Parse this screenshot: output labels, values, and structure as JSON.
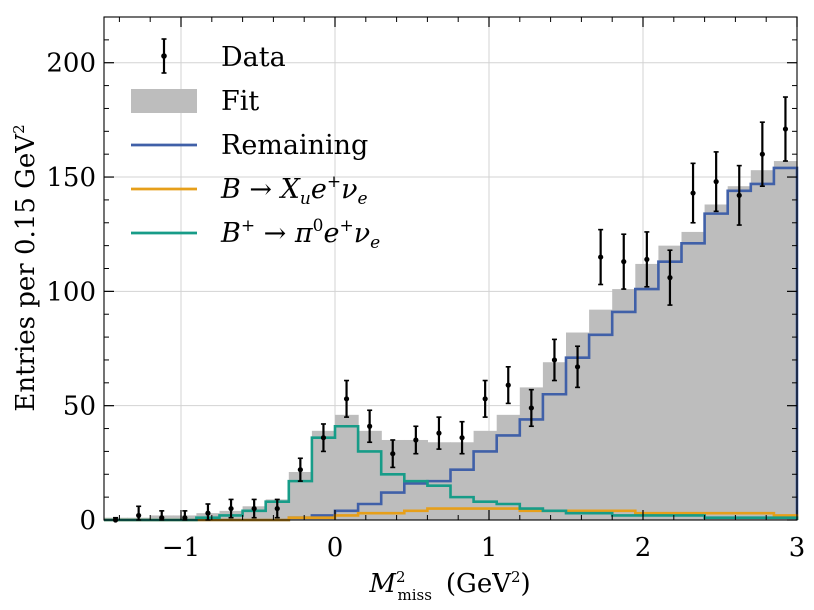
{
  "chart_data": {
    "type": "histogram",
    "title": "",
    "xlabel": "M²miss  (GeV²)",
    "ylabel": "Entries per 0.15 GeV²",
    "xlim": [
      -1.5,
      3.0
    ],
    "ylim": [
      0,
      220
    ],
    "x_ticks": [
      -1,
      0,
      1,
      2,
      3
    ],
    "x_tick_labels": [
      "−1",
      "0",
      "1",
      "2",
      "3"
    ],
    "y_ticks": [
      0,
      50,
      100,
      150,
      200
    ],
    "y_tick_labels": [
      "0",
      "50",
      "100",
      "150",
      "200"
    ],
    "grid": true,
    "legend_position": "top-left",
    "bin_edges": [
      -1.5,
      -1.35,
      -1.2,
      -1.05,
      -0.9,
      -0.75,
      -0.6,
      -0.45,
      -0.3,
      -0.15,
      0.0,
      0.15,
      0.3,
      0.45,
      0.6,
      0.75,
      0.9,
      1.05,
      1.2,
      1.35,
      1.5,
      1.65,
      1.8,
      1.95,
      2.1,
      2.25,
      2.4,
      2.55,
      2.7,
      2.85,
      3.0
    ],
    "series": [
      {
        "name": "Fit",
        "label": "Fit",
        "style": "filled",
        "color": "#bdbdbd",
        "values": [
          1,
          1,
          2,
          2,
          3,
          4,
          6,
          9,
          21,
          39,
          46,
          39,
          35,
          35,
          34,
          34,
          39,
          46,
          58,
          69,
          82,
          92,
          101,
          112,
          120,
          126,
          138,
          146,
          153,
          157
        ]
      },
      {
        "name": "Remaining",
        "label": "Remaining",
        "style": "step",
        "color": "#4060a8",
        "values": [
          0,
          0,
          0,
          0,
          0,
          0,
          0,
          0,
          1,
          2,
          4,
          7,
          12,
          16,
          17,
          22,
          30,
          37,
          44,
          55,
          71,
          81,
          91,
          101,
          113,
          121,
          134,
          144,
          147,
          154
        ]
      },
      {
        "name": "B to Xu e nu",
        "label": "B → Xᵤe⁺νₑ",
        "style": "step",
        "color": "#e69f1a",
        "values": [
          0,
          0,
          0,
          0,
          0,
          0,
          0,
          0,
          1,
          1,
          2,
          3,
          3,
          4,
          5,
          5,
          5,
          5,
          4,
          4,
          4,
          4,
          4,
          3,
          3,
          3,
          3,
          3,
          3,
          2
        ]
      },
      {
        "name": "B+ to pi0 e nu",
        "label": "B⁺ → π⁰e⁺νₑ",
        "style": "step",
        "color": "#179c88",
        "values": [
          0,
          0,
          0,
          0,
          1,
          2,
          4,
          8,
          17,
          36,
          41,
          30,
          20,
          17,
          15,
          10,
          8,
          7,
          5,
          4,
          3,
          3,
          2,
          2,
          2,
          2,
          1,
          1,
          1,
          1
        ]
      }
    ],
    "data_points": {
      "label": "Data",
      "color": "#000000",
      "x": [
        -1.425,
        -1.275,
        -1.125,
        -0.975,
        -0.825,
        -0.675,
        -0.525,
        -0.375,
        -0.225,
        -0.075,
        0.075,
        0.225,
        0.375,
        0.525,
        0.675,
        0.825,
        0.975,
        1.125,
        1.275,
        1.425,
        1.575,
        1.725,
        1.875,
        2.025,
        2.175,
        2.325,
        2.475,
        2.625,
        2.775,
        2.925
      ],
      "y": [
        0,
        2,
        1,
        1,
        3,
        5,
        5,
        5,
        22,
        36,
        53,
        41,
        29,
        35,
        38,
        36,
        53,
        59,
        49,
        70,
        67,
        115,
        113,
        114,
        106,
        143,
        148,
        142,
        160,
        171
      ],
      "yerr": [
        1,
        4,
        3,
        3,
        4,
        4,
        4,
        4,
        5,
        6,
        8,
        7,
        6,
        6,
        7,
        7,
        8,
        8,
        8,
        9,
        9,
        12,
        12,
        12,
        12,
        13,
        13,
        13,
        14,
        14
      ]
    }
  }
}
